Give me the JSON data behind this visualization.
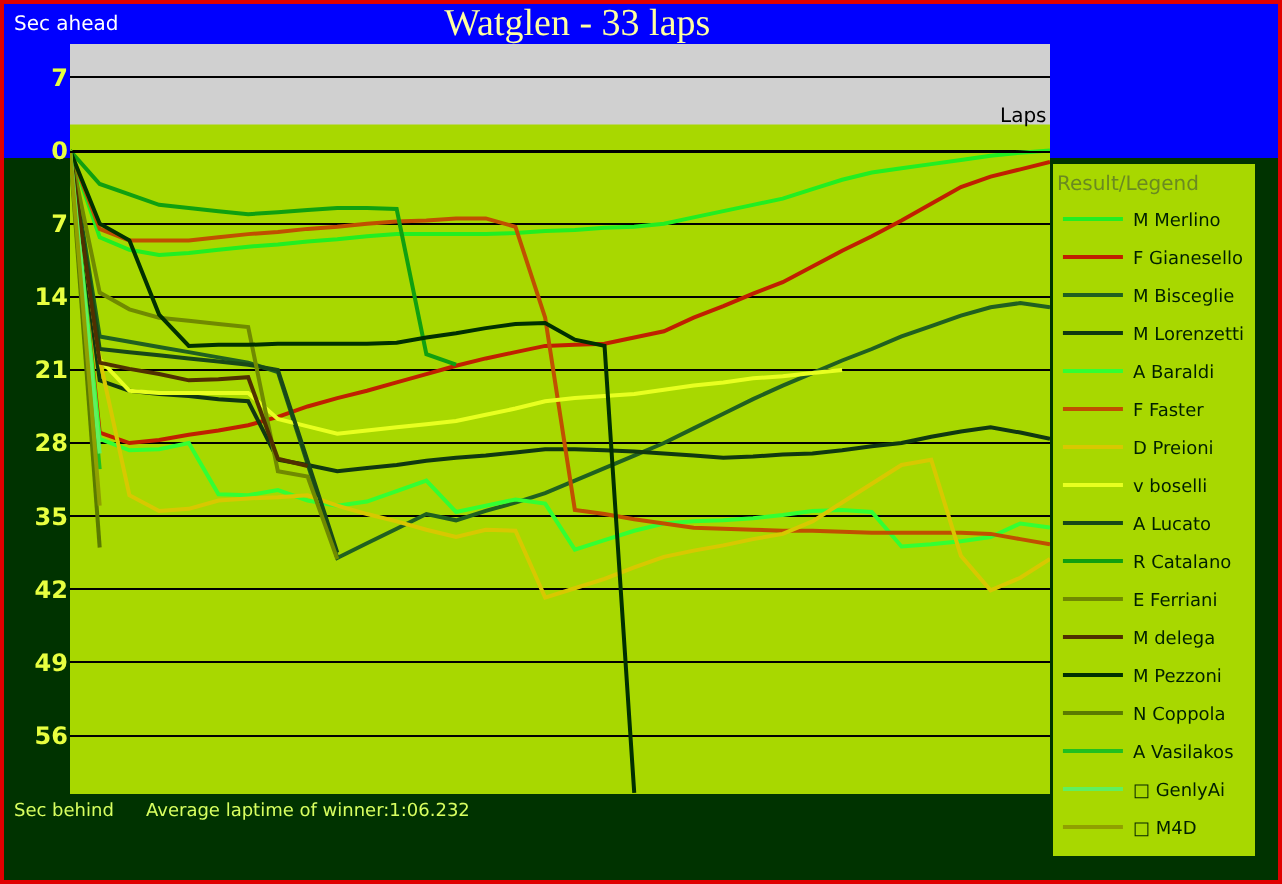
{
  "chart_data": {
    "type": "line",
    "title": "Watglen - 33 laps",
    "xlabel": "Laps",
    "legend_title": "Result/Legend",
    "annotations": [
      "Sec ahead",
      "Sec behind",
      "Average laptime of winner:1:06.232"
    ],
    "categories": [
      null,
      null,
      null,
      null,
      null,
      null,
      null,
      null,
      null,
      null,
      null,
      null,
      null,
      null,
      null,
      null,
      null,
      null,
      null,
      null,
      null,
      null,
      null,
      null,
      null,
      null,
      null,
      null,
      null,
      null,
      null,
      null,
      null,
      null
    ],
    "ylim": [
      61.6,
      -10.2
    ],
    "yticks": [
      {
        "value": -7,
        "label": "7"
      },
      0,
      7,
      14,
      21,
      28,
      35,
      42,
      49,
      56
    ],
    "bands": [
      {
        "axis": "y",
        "from": -10.2,
        "to": -2.5,
        "label": null,
        "color": "#d0d0d0"
      }
    ],
    "grid": "y",
    "legend": "right",
    "marker": "none",
    "line_style": "solid",
    "series": [
      {
        "name": "M Merlino",
        "color": "#22ee22",
        "values": [
          0,
          8.3,
          9.5,
          10,
          9.8,
          9.5,
          9.2,
          9,
          8.7,
          8.5,
          8.2,
          8,
          8,
          8,
          8,
          7.9,
          7.7,
          7.6,
          7.4,
          7.3,
          7,
          6.4,
          5.8,
          5.2,
          4.6,
          3.7,
          2.8,
          2.1,
          1.7,
          1.3,
          0.9,
          0.5,
          0.2,
          0
        ]
      },
      {
        "name": "F Gianesello",
        "color": "#c02000",
        "values": [
          0,
          27,
          28,
          27.7,
          27.2,
          26.8,
          26.3,
          25.5,
          24.5,
          23.7,
          23,
          22.2,
          21.4,
          20.6,
          19.9,
          19.3,
          18.7,
          18.6,
          18.5,
          17.9,
          17.3,
          16,
          14.9,
          13.7,
          12.6,
          11.1,
          9.6,
          8.2,
          6.7,
          5.1,
          3.5,
          2.5,
          1.8,
          1.1
        ]
      },
      {
        "name": "M Bisceglie",
        "color": "#206020",
        "values": [
          0,
          17.8,
          18.3,
          18.8,
          19.3,
          19.8,
          20.3,
          21.2,
          30,
          39,
          37.6,
          36.2,
          34.8,
          35.4,
          34.5,
          33.7,
          32.8,
          31.6,
          30.4,
          29.2,
          28,
          26.6,
          25.2,
          23.8,
          22.5,
          21.3,
          20.1,
          19,
          17.8,
          16.8,
          15.8,
          15,
          14.6,
          15
        ]
      },
      {
        "name": "M Lorenzetti",
        "color": "#103810",
        "values": [
          0,
          22,
          23,
          23.3,
          23.5,
          23.8,
          24,
          29.6,
          30.1,
          30.7,
          30.4,
          30.1,
          29.7,
          29.4,
          29.2,
          28.9,
          28.6,
          28.6,
          28.7,
          28.8,
          29,
          29.2,
          29.4,
          29.3,
          29.1,
          29,
          28.7,
          28.3,
          28,
          27.4,
          26.9,
          26.5,
          27,
          27.6
        ]
      },
      {
        "name": "A Baraldi",
        "color": "#33ff33",
        "values": [
          0,
          27.6,
          28.7,
          28.6,
          28,
          32.9,
          33,
          32.5,
          33.5,
          34,
          33.6,
          32.6,
          31.6,
          34.6,
          34,
          33.4,
          33.8,
          38.2,
          37.3,
          36.4,
          35.7,
          35.5,
          35.4,
          35.2,
          34.9,
          34.5,
          34.4,
          34.6,
          37.9,
          37.7,
          37.4,
          37,
          35.7,
          36.1
        ]
      },
      {
        "name": "F Faster",
        "color": "#c05000",
        "values": [
          0,
          7.5,
          8.6,
          8.6,
          8.6,
          8.3,
          8,
          7.8,
          7.5,
          7.3,
          7,
          6.8,
          6.7,
          6.5,
          6.5,
          7.3,
          16,
          34.4,
          34.8,
          35.3,
          35.7,
          36.1,
          36.2,
          36.3,
          36.4,
          36.4,
          36.5,
          36.6,
          36.6,
          36.6,
          36.6,
          36.7,
          37.2,
          37.7
        ]
      },
      {
        "name": "D Preioni",
        "color": "#d8c800",
        "values": [
          0,
          20,
          33,
          34.5,
          34.3,
          33.5,
          33.3,
          33.2,
          33,
          34,
          34.8,
          35.5,
          36.3,
          37,
          36.3,
          36.4,
          42.8,
          41.9,
          41,
          39.9,
          38.9,
          38.3,
          37.8,
          37.2,
          36.7,
          35.5,
          33.7,
          31.9,
          30.1,
          29.6,
          38.8,
          42.1,
          40.9,
          39.1
        ]
      },
      {
        "name": "v boselli",
        "color": "#e8ff20",
        "values": [
          0,
          20,
          23,
          23.2,
          23.2,
          23.2,
          23.2,
          25.7,
          26.4,
          27.1,
          26.8,
          26.5,
          26.2,
          25.9,
          25.3,
          24.7,
          24,
          23.7,
          23.5,
          23.3,
          22.9,
          22.5,
          22.2,
          21.8,
          21.6,
          21.3,
          21,
          null,
          null,
          null,
          null,
          null,
          null,
          null
        ]
      },
      {
        "name": "A Lucato",
        "color": "#184818",
        "values": [
          0,
          19,
          19.3,
          19.6,
          19.9,
          20.2,
          20.5,
          21,
          29.7,
          38.5,
          null,
          null,
          null,
          null,
          null,
          null,
          null,
          null,
          null,
          null,
          null,
          null,
          null,
          null,
          null,
          null,
          null,
          null,
          null,
          null,
          null,
          null,
          null,
          null
        ]
      },
      {
        "name": "R Catalano",
        "color": "#10a010",
        "values": [
          0,
          3.2,
          4.2,
          5.2,
          5.5,
          5.8,
          6.1,
          5.9,
          5.7,
          5.5,
          5.5,
          5.6,
          19.5,
          20.5,
          null,
          null,
          null,
          null,
          null,
          null,
          null,
          null,
          null,
          null,
          null,
          null,
          null,
          null,
          null,
          null,
          null,
          null,
          null,
          null
        ]
      },
      {
        "name": "E Ferriani",
        "color": "#708a00",
        "values": [
          0,
          13.6,
          15.2,
          16,
          16.3,
          16.6,
          16.9,
          30.7,
          31.2,
          39.1,
          null,
          null,
          null,
          null,
          null,
          null,
          null,
          null,
          null,
          null,
          null,
          null,
          null,
          null,
          null,
          null,
          null,
          null,
          null,
          null,
          null,
          null,
          null,
          null
        ]
      },
      {
        "name": "M delega",
        "color": "#503000",
        "values": [
          0,
          20.3,
          20.9,
          21.4,
          22,
          21.9,
          21.7,
          29.5,
          30.2,
          null,
          null,
          null,
          null,
          null,
          null,
          null,
          null,
          null,
          null,
          null,
          null,
          null,
          null,
          null,
          null,
          null,
          null,
          null,
          null,
          null,
          null,
          null,
          null,
          null
        ]
      },
      {
        "name": "M Pezzoni",
        "color": "#003000",
        "values": [
          0,
          7,
          8.6,
          15.7,
          18.7,
          18.6,
          18.6,
          18.5,
          18.5,
          18.5,
          18.5,
          18.4,
          17.9,
          17.5,
          17,
          16.6,
          16.5,
          18.1,
          18.7,
          61.5,
          null,
          null,
          null,
          null,
          null,
          null,
          null,
          null,
          null,
          null,
          null,
          null,
          null,
          null
        ]
      },
      {
        "name": "N Coppola",
        "color": "#5a7a00",
        "values": [
          0,
          38,
          null,
          null,
          null,
          null,
          null,
          null,
          null,
          null,
          null,
          null,
          null,
          null,
          null,
          null,
          null,
          null,
          null,
          null,
          null,
          null,
          null,
          null,
          null,
          null,
          null,
          null,
          null,
          null,
          null,
          null,
          null,
          null
        ]
      },
      {
        "name": "A Vasilakos",
        "color": "#20c020",
        "values": [
          0,
          30.5,
          null,
          null,
          null,
          null,
          null,
          null,
          null,
          null,
          null,
          null,
          null,
          null,
          null,
          null,
          null,
          null,
          null,
          null,
          null,
          null,
          null,
          null,
          null,
          null,
          null,
          null,
          null,
          null,
          null,
          null,
          null,
          null
        ]
      },
      {
        "name": "□ GenlyAi",
        "color": "#60f060",
        "values": [
          0,
          29,
          null,
          null,
          null,
          null,
          null,
          null,
          null,
          null,
          null,
          null,
          null,
          null,
          null,
          null,
          null,
          null,
          null,
          null,
          null,
          null,
          null,
          null,
          null,
          null,
          null,
          null,
          null,
          null,
          null,
          null,
          null,
          null
        ]
      },
      {
        "name": "□ M4D",
        "color": "#90a000",
        "values": [
          0,
          34,
          null,
          null,
          null,
          null,
          null,
          null,
          null,
          null,
          null,
          null,
          null,
          null,
          null,
          null,
          null,
          null,
          null,
          null,
          null,
          null,
          null,
          null,
          null,
          null,
          null,
          null,
          null,
          null,
          null,
          null,
          null,
          null
        ]
      }
    ]
  }
}
